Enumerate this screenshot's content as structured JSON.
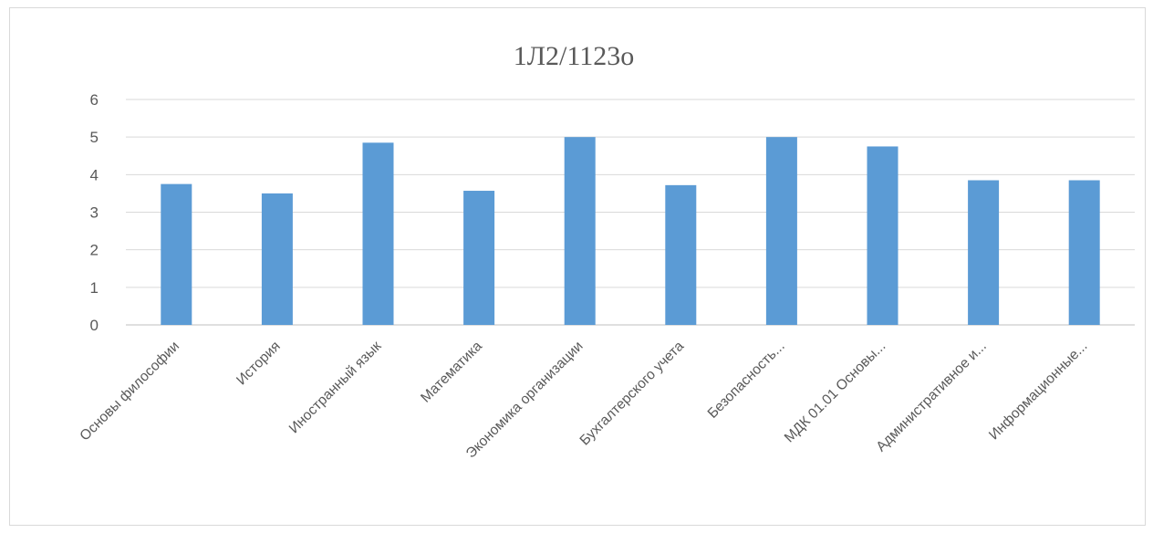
{
  "chart_data": {
    "type": "bar",
    "title": "1Л2/1123о",
    "categories": [
      "Основы философии",
      "История",
      "Иностранный язык",
      "Математика",
      "Экономика организации",
      "Бухгалтерского учета",
      "Безопасность...",
      "МДК 01.01 Основы...",
      "Административное и...",
      "Информационные..."
    ],
    "values": [
      3.75,
      3.5,
      4.85,
      3.57,
      5.0,
      3.72,
      5.0,
      4.75,
      3.85,
      3.85
    ],
    "xlabel": "",
    "ylabel": "",
    "ylim": [
      0,
      6
    ],
    "yticks": [
      "0",
      "1",
      "2",
      "3",
      "4",
      "5",
      "6"
    ],
    "grid": true,
    "legend": "none",
    "bar_color": "#5b9bd5"
  }
}
